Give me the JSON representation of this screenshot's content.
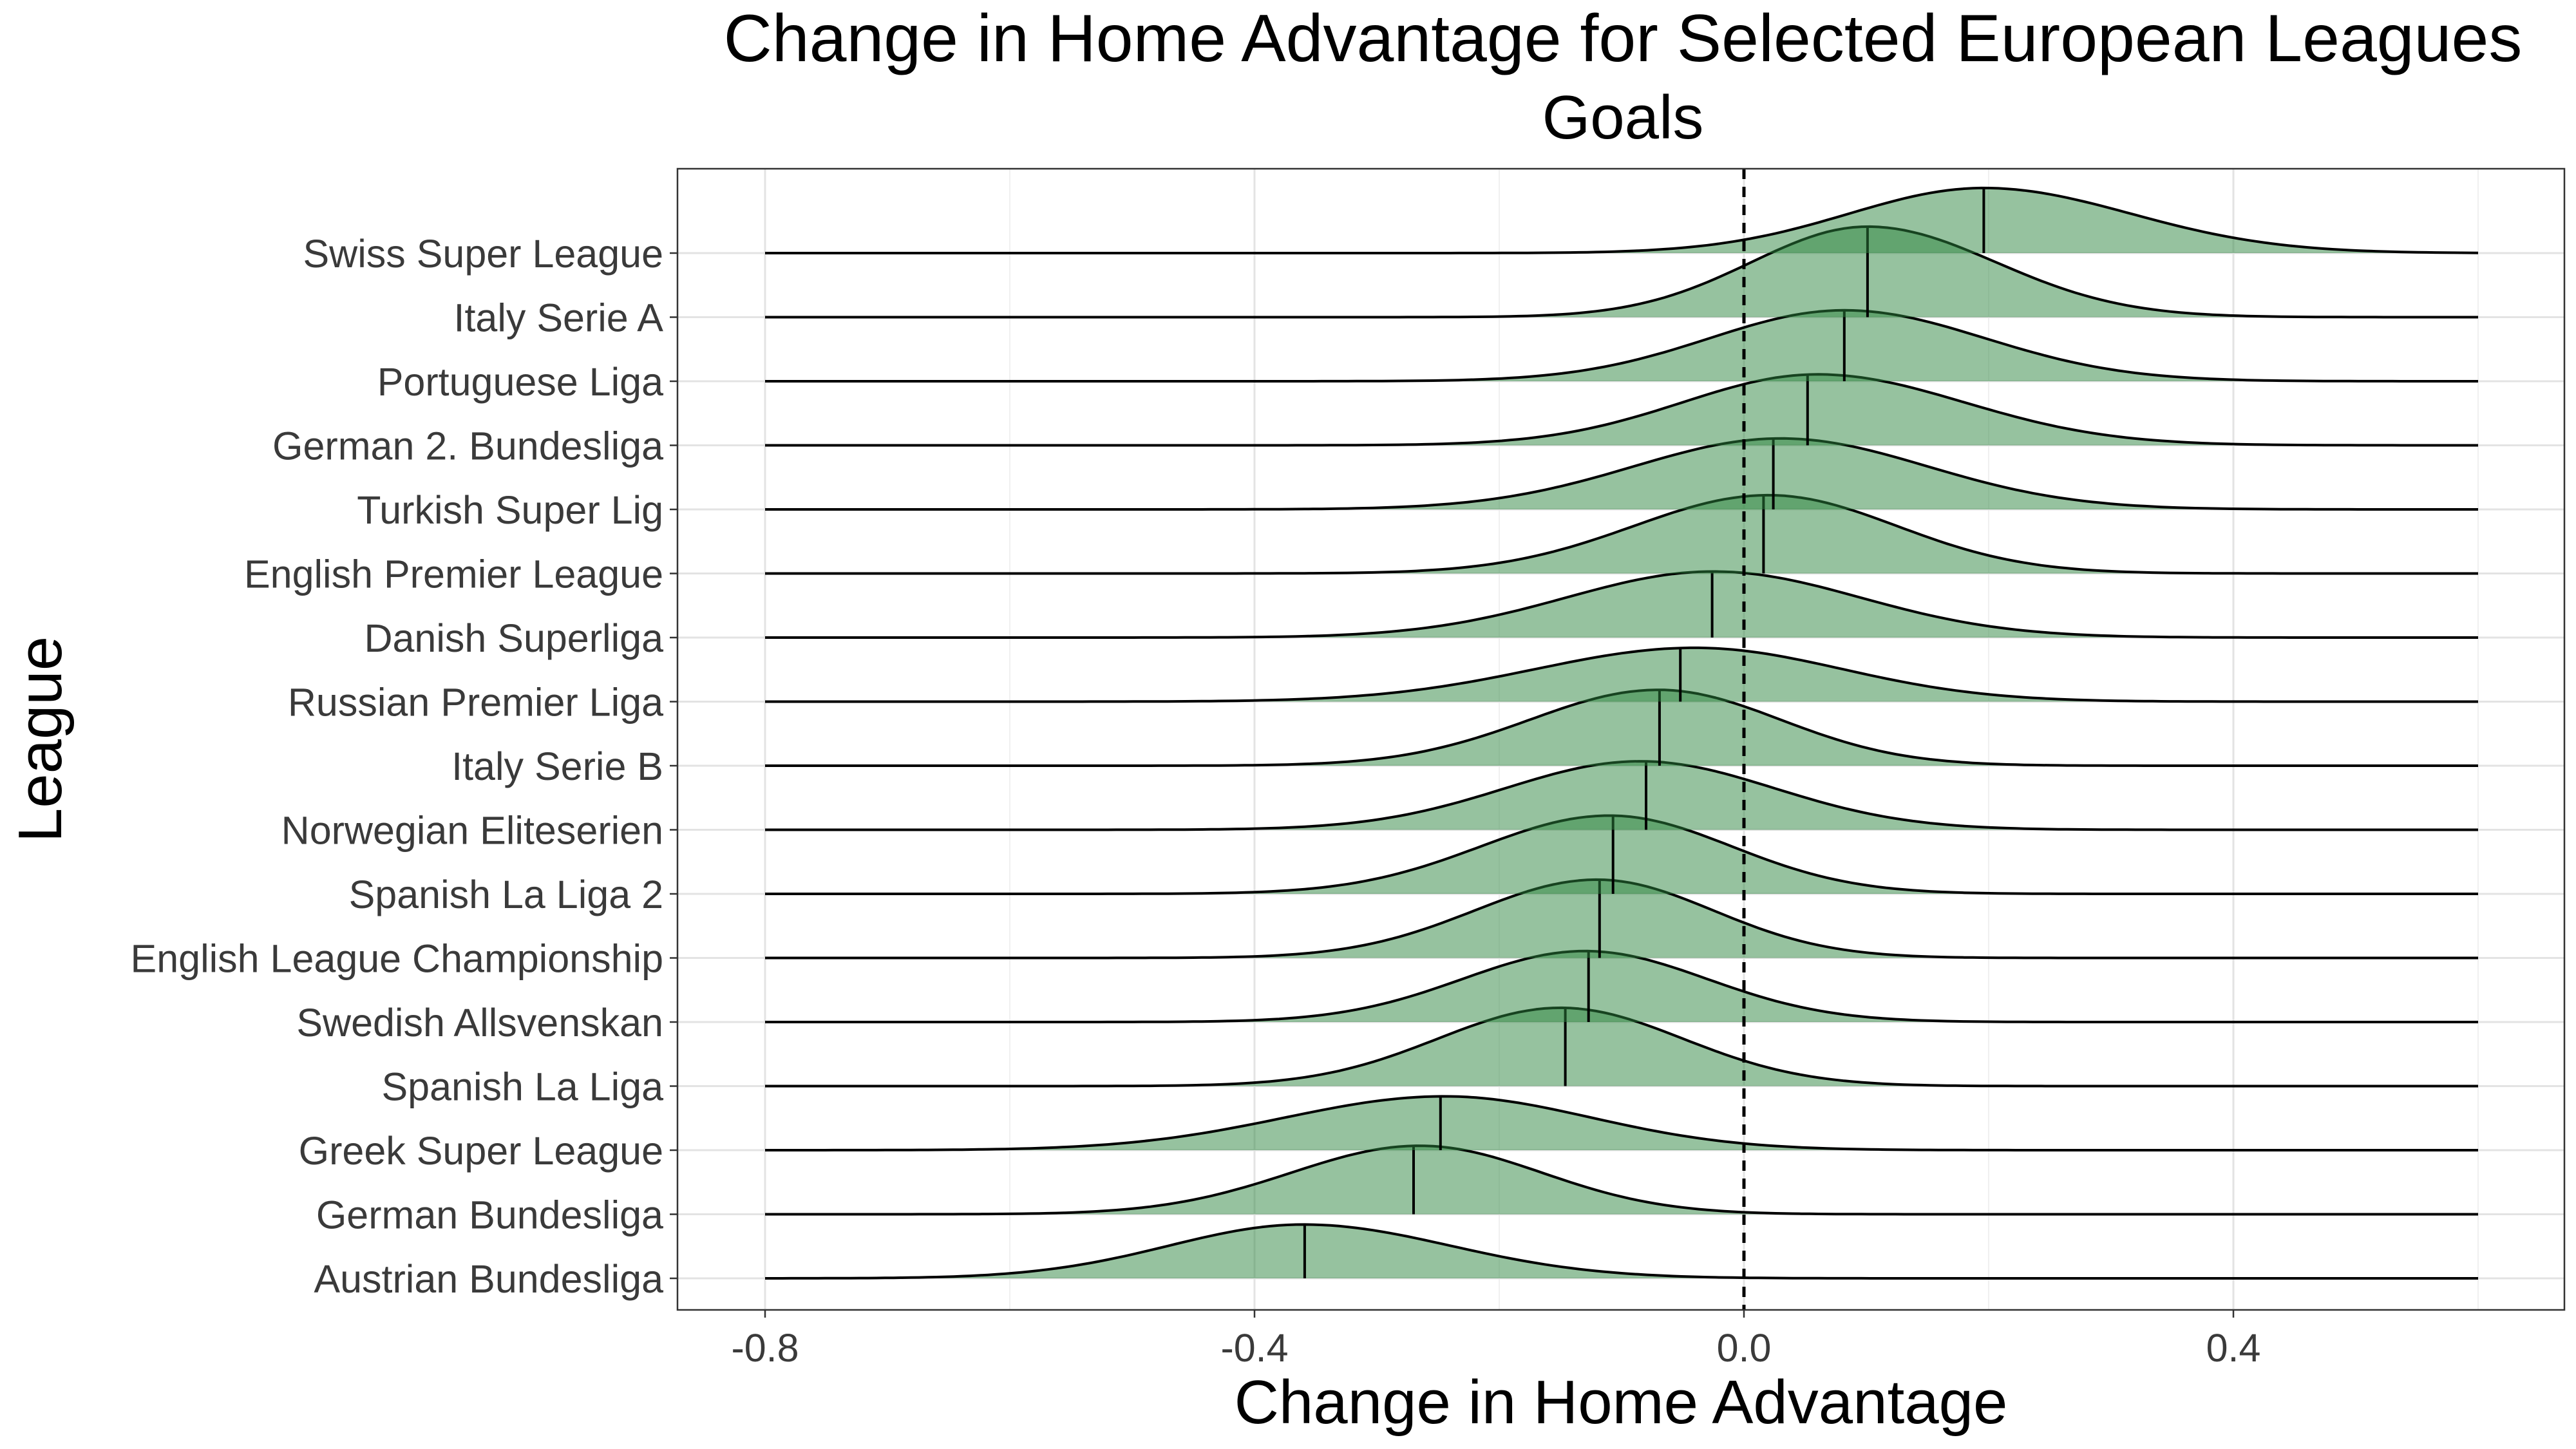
{
  "chart_data": {
    "type": "ridgeline",
    "title": "Change in Home Advantage for Selected European Leagues",
    "subtitle": "Goals",
    "xlabel": "Change in Home Advantage",
    "ylabel": "League",
    "xlim": [
      -0.87,
      0.67
    ],
    "xticks": [
      -0.8,
      -0.4,
      0.0,
      0.4
    ],
    "xtick_labels": [
      "-0.8",
      "-0.4",
      "0.0",
      "0.4"
    ],
    "grid": true,
    "reference_line": {
      "x": 0.0,
      "style": "dashed"
    },
    "fill_color": "#2e8540",
    "density_range": [
      -0.8,
      0.6
    ],
    "leagues": [
      {
        "name": "Swiss Super League",
        "median": 0.196,
        "center": 0.196,
        "sd_left": 0.11,
        "sd_right": 0.12,
        "height": 1.33
      },
      {
        "name": "Italy Serie A",
        "median": 0.101,
        "center": 0.101,
        "sd_left": 0.095,
        "sd_right": 0.105,
        "height": 1.85
      },
      {
        "name": "Portuguese Liga",
        "median": 0.082,
        "center": 0.082,
        "sd_left": 0.11,
        "sd_right": 0.115,
        "height": 1.45
      },
      {
        "name": "German 2. Bundesliga",
        "median": 0.052,
        "center": 0.06,
        "sd_left": 0.11,
        "sd_right": 0.12,
        "height": 1.45
      },
      {
        "name": "Turkish Super Lig",
        "median": 0.024,
        "center": 0.03,
        "sd_left": 0.12,
        "sd_right": 0.12,
        "height": 1.45
      },
      {
        "name": "English Premier League",
        "median": 0.016,
        "center": 0.02,
        "sd_left": 0.11,
        "sd_right": 0.105,
        "height": 1.6
      },
      {
        "name": "Danish Superliga",
        "median": -0.026,
        "center": -0.025,
        "sd_left": 0.12,
        "sd_right": 0.12,
        "height": 1.35
      },
      {
        "name": "Russian Premier Liga",
        "median": -0.052,
        "center": -0.04,
        "sd_left": 0.13,
        "sd_right": 0.12,
        "height": 1.1
      },
      {
        "name": "Italy Serie B",
        "median": -0.069,
        "center": -0.07,
        "sd_left": 0.105,
        "sd_right": 0.1,
        "height": 1.55
      },
      {
        "name": "Norwegian Eliteserien",
        "median": -0.08,
        "center": -0.085,
        "sd_left": 0.11,
        "sd_right": 0.11,
        "height": 1.4
      },
      {
        "name": "Spanish La Liga 2",
        "median": -0.107,
        "center": -0.11,
        "sd_left": 0.105,
        "sd_right": 0.1,
        "height": 1.6
      },
      {
        "name": "English League Championship",
        "median": -0.118,
        "center": -0.12,
        "sd_left": 0.1,
        "sd_right": 0.095,
        "height": 1.6
      },
      {
        "name": "Swedish Allsvenskan",
        "median": -0.127,
        "center": -0.13,
        "sd_left": 0.1,
        "sd_right": 0.1,
        "height": 1.45
      },
      {
        "name": "Spanish La Liga",
        "median": -0.146,
        "center": -0.15,
        "sd_left": 0.1,
        "sd_right": 0.1,
        "height": 1.6
      },
      {
        "name": "Greek Super League",
        "median": -0.248,
        "center": -0.245,
        "sd_left": 0.13,
        "sd_right": 0.12,
        "height": 1.1
      },
      {
        "name": "German Bundesliga",
        "median": -0.27,
        "center": -0.265,
        "sd_left": 0.105,
        "sd_right": 0.1,
        "height": 1.4
      },
      {
        "name": "Austrian Bundesliga",
        "median": -0.359,
        "center": -0.36,
        "sd_left": 0.11,
        "sd_right": 0.12,
        "height": 1.1
      }
    ]
  }
}
